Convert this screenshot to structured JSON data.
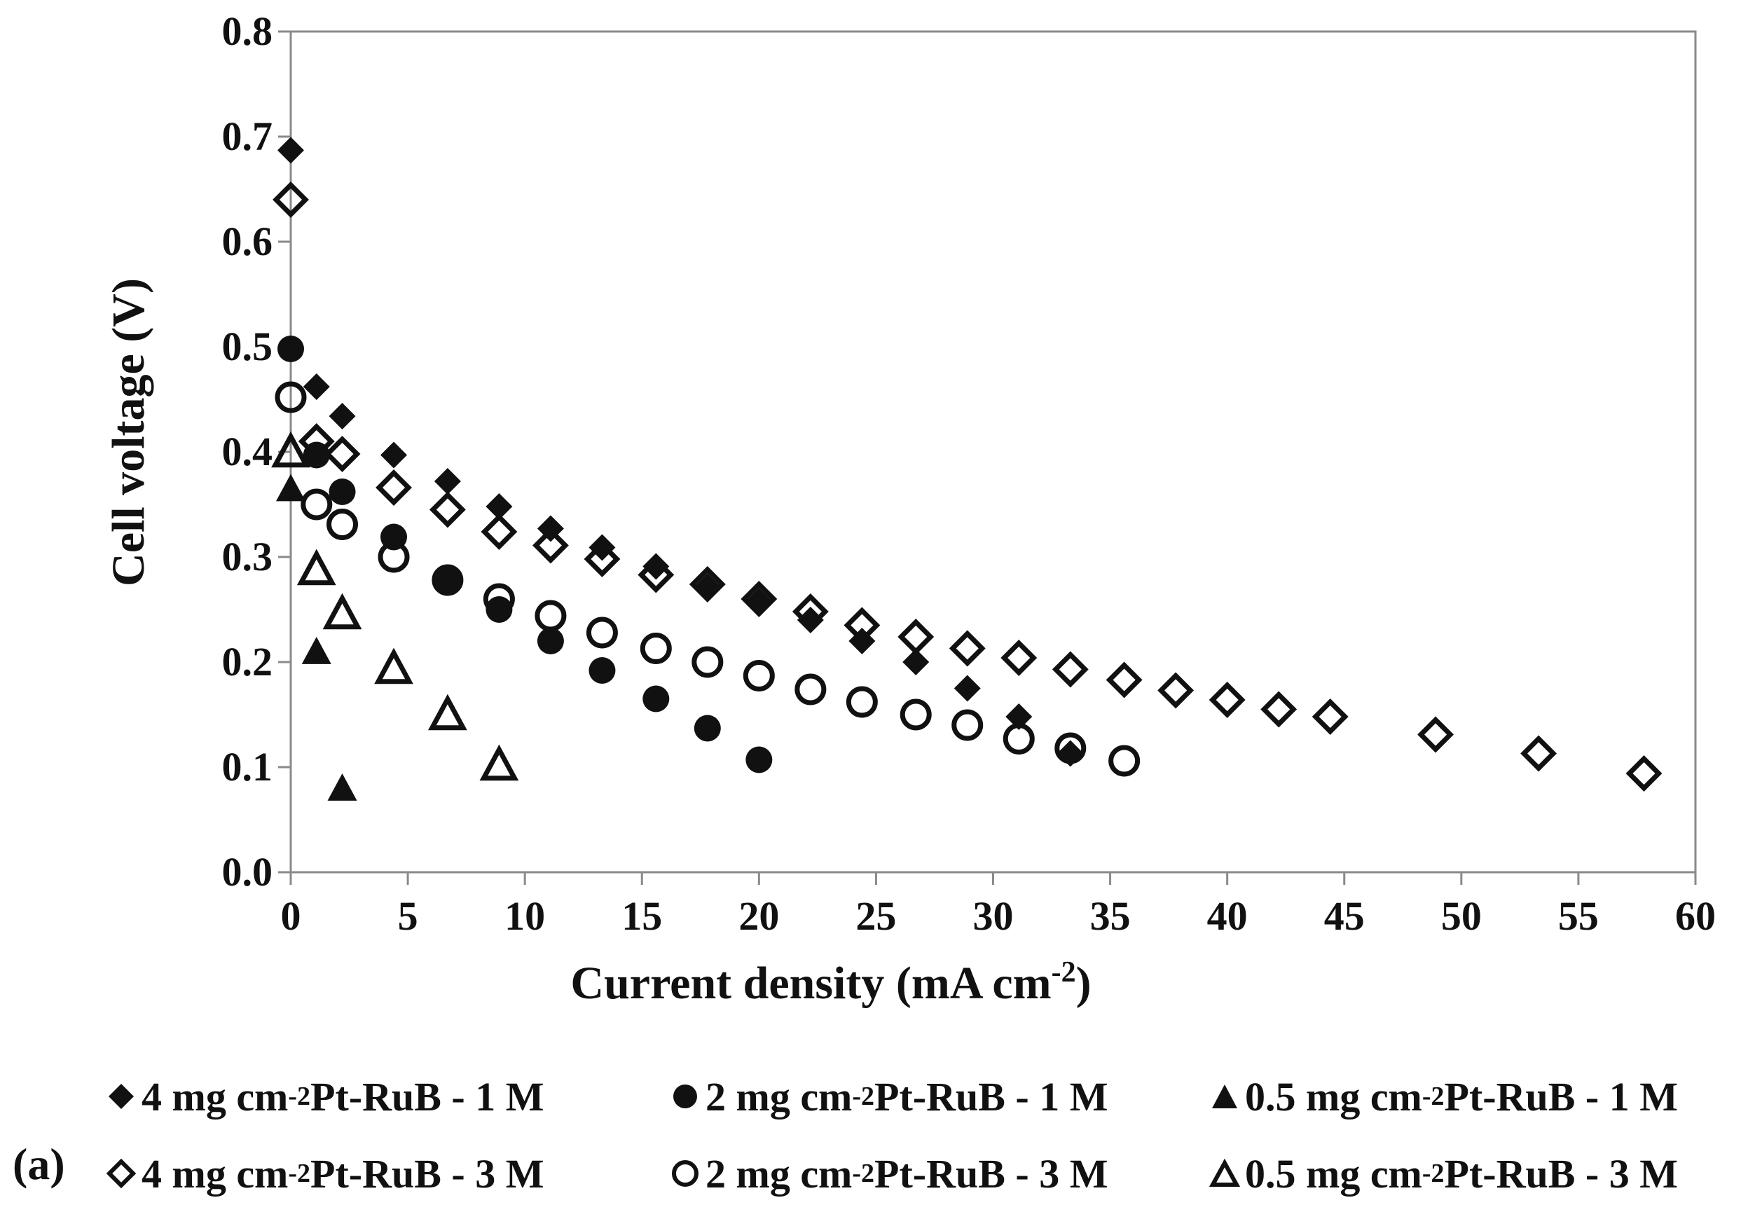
{
  "chart_data": {
    "type": "scatter",
    "title": "",
    "xlabel": "Current density (mA cm-2)",
    "xlabel_parts": {
      "main": "Current density (mA cm",
      "sup": "-2",
      "end": ")"
    },
    "ylabel": "Cell voltage (V)",
    "xlim": [
      0,
      60
    ],
    "ylim": [
      0,
      0.8
    ],
    "x_ticks": [
      0,
      5,
      10,
      15,
      20,
      25,
      30,
      35,
      40,
      45,
      50,
      55,
      60
    ],
    "x_tick_labels": [
      "0",
      "5",
      "10",
      "15",
      "20",
      "25",
      "30",
      "35",
      "40",
      "45",
      "50",
      "55",
      "60"
    ],
    "y_ticks": [
      0,
      0.1,
      0.2,
      0.3,
      0.4,
      0.5,
      0.6,
      0.7,
      0.8
    ],
    "y_tick_labels": [
      "0.0",
      "0.1",
      "0.2",
      "0.3",
      "0.4",
      "0.5",
      "0.6",
      "0.7",
      "0.8"
    ],
    "grid": false,
    "legend_position": "bottom",
    "series": [
      {
        "name": "4 mg cm-2 Pt-RuB - 1 M",
        "legend_prefix": "4 mg cm",
        "legend_suffix": " Pt-RuB - 1 M",
        "marker": "diamond",
        "filled": true,
        "x": [
          0,
          1.1,
          2.2,
          4.4,
          6.7,
          8.9,
          11.1,
          13.3,
          15.6,
          17.8,
          20.0,
          22.2,
          24.4,
          26.7,
          28.9,
          31.1,
          33.3
        ],
        "y": [
          0.687,
          0.462,
          0.434,
          0.397,
          0.372,
          0.348,
          0.327,
          0.309,
          0.291,
          0.272,
          0.258,
          0.24,
          0.22,
          0.2,
          0.175,
          0.148,
          0.113
        ]
      },
      {
        "name": "2 mg cm-2 Pt-RuB - 1 M",
        "legend_prefix": "2 mg cm",
        "legend_suffix": " Pt-RuB - 1 M",
        "marker": "circle",
        "filled": true,
        "x": [
          0,
          1.1,
          2.2,
          4.4,
          6.7,
          8.9,
          11.1,
          13.3,
          15.6,
          17.8,
          20.0
        ],
        "y": [
          0.498,
          0.397,
          0.362,
          0.319,
          0.28,
          0.25,
          0.22,
          0.192,
          0.165,
          0.137,
          0.107
        ]
      },
      {
        "name": "0.5 mg cm-2 Pt-RuB - 1 M",
        "legend_prefix": "0.5 mg cm",
        "legend_suffix": " Pt-RuB - 1 M",
        "marker": "triangle",
        "filled": true,
        "x": [
          0,
          1.1,
          2.2
        ],
        "y": [
          0.365,
          0.21,
          0.08
        ]
      },
      {
        "name": "4 mg cm-2 Pt-RuB - 3 M",
        "legend_prefix": "4 mg cm",
        "legend_suffix": " Pt-RuB - 3 M",
        "marker": "diamond",
        "filled": false,
        "x": [
          0,
          1.1,
          2.2,
          4.4,
          6.7,
          8.9,
          11.1,
          13.3,
          15.6,
          17.8,
          20.0,
          22.2,
          24.4,
          26.7,
          28.9,
          31.1,
          33.3,
          35.6,
          37.8,
          40.0,
          42.2,
          44.4,
          48.9,
          53.3,
          57.8
        ],
        "y": [
          0.64,
          0.41,
          0.398,
          0.366,
          0.345,
          0.324,
          0.311,
          0.298,
          0.283,
          0.274,
          0.26,
          0.248,
          0.235,
          0.224,
          0.213,
          0.204,
          0.193,
          0.183,
          0.173,
          0.164,
          0.155,
          0.148,
          0.131,
          0.113,
          0.094
        ]
      },
      {
        "name": "2 mg cm-2 Pt-RuB - 3 M",
        "legend_prefix": "2 mg cm",
        "legend_suffix": " Pt-RuB - 3 M",
        "marker": "circle",
        "filled": false,
        "x": [
          0,
          1.1,
          2.2,
          4.4,
          6.7,
          8.9,
          11.1,
          13.3,
          15.6,
          17.8,
          20.0,
          22.2,
          24.4,
          26.7,
          28.9,
          31.1,
          33.3,
          35.6
        ],
        "y": [
          0.452,
          0.35,
          0.331,
          0.3,
          0.278,
          0.26,
          0.244,
          0.228,
          0.213,
          0.2,
          0.187,
          0.174,
          0.162,
          0.15,
          0.14,
          0.127,
          0.118,
          0.106
        ]
      },
      {
        "name": "0.5 mg cm-2 Pt-RuB - 3 M",
        "legend_prefix": "0.5 mg cm",
        "legend_suffix": " Pt-RuB - 3 M",
        "marker": "triangle",
        "filled": false,
        "x": [
          0,
          1.1,
          2.2,
          4.4,
          6.7,
          8.9
        ],
        "y": [
          0.4,
          0.288,
          0.246,
          0.194,
          0.15,
          0.102
        ]
      }
    ],
    "legend_sup": "-2",
    "panel_label": "(a)"
  }
}
